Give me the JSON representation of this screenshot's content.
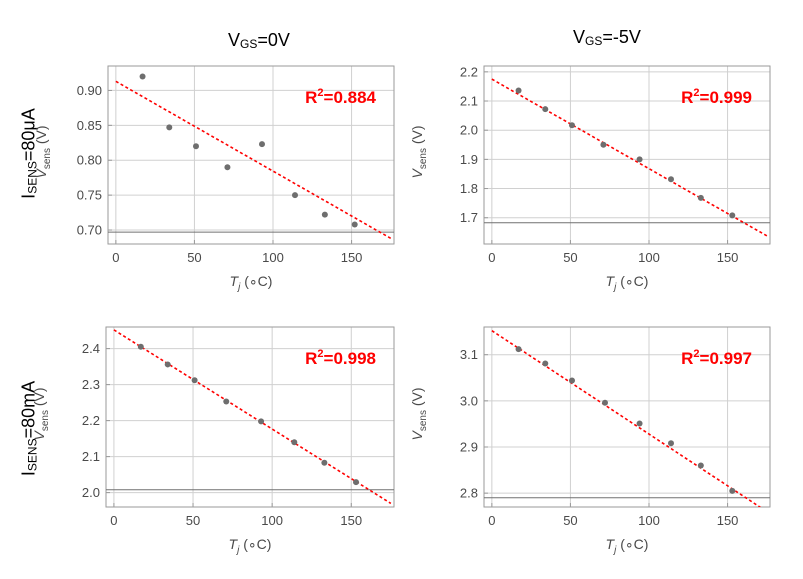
{
  "columns": [
    {
      "main": "V",
      "sub": "GS",
      "rest": "=0V"
    },
    {
      "main": "V",
      "sub": "GS",
      "rest": "=-5V"
    }
  ],
  "rows": [
    {
      "main": "I",
      "sub": "SENS",
      "rest": "=80μA"
    },
    {
      "main": "I",
      "sub": "SENS",
      "rest": "=80mA"
    }
  ],
  "colors": {
    "points": "#6e6e6e",
    "fit": "#ff0000",
    "grid": "#d0d0d0",
    "frame": "#9a9a9a",
    "baseline": "#707070",
    "r2": "#ff0000"
  },
  "chart_data": [
    {
      "type": "scatter",
      "row": "I_SENS=80μA",
      "column": "V_GS=0V",
      "xlabel_main": "T",
      "xlabel_sub": "j",
      "xlabel_unit": " (∘C)",
      "ylabel_main": "V",
      "ylabel_sub": "sens",
      "ylabel_unit": " (V)",
      "xlim": [
        -5,
        177
      ],
      "ylim": [
        0.68,
        0.935
      ],
      "xticks": [
        0,
        50,
        100,
        150
      ],
      "yticks": [
        0.7,
        0.75,
        0.8,
        0.85,
        0.9
      ],
      "ytick_labels": [
        "0.70",
        "0.75",
        "0.80",
        "0.85",
        "0.90"
      ],
      "baseline_y": 0.697,
      "grid": true,
      "points": {
        "x": [
          17,
          34,
          51,
          71,
          93,
          114,
          133,
          152
        ],
        "y": [
          0.92,
          0.847,
          0.82,
          0.79,
          0.823,
          0.75,
          0.722,
          0.708
        ]
      },
      "fit": {
        "x": [
          0,
          175
        ],
        "y": [
          0.913,
          0.688
        ]
      },
      "annotation_prefix": "R",
      "annotation_sup": "2",
      "annotation_value": "=0.884",
      "annotation_position": "top-right"
    },
    {
      "type": "scatter",
      "row": "I_SENS=80μA",
      "column": "V_GS=-5V",
      "xlabel_main": "T",
      "xlabel_sub": "j",
      "xlabel_unit": " (∘C)",
      "ylabel_main": "V",
      "ylabel_sub": "sens",
      "ylabel_unit": " (V)",
      "xlim": [
        -5,
        177
      ],
      "ylim": [
        1.61,
        2.22
      ],
      "xticks": [
        0,
        50,
        100,
        150
      ],
      "yticks": [
        1.7,
        1.8,
        1.9,
        2.0,
        2.1,
        2.2
      ],
      "ytick_labels": [
        "1.7",
        "1.8",
        "1.9",
        "2.0",
        "2.1",
        "2.2"
      ],
      "baseline_y": 1.683,
      "grid": true,
      "points": {
        "x": [
          17,
          34,
          51,
          71,
          94,
          114,
          133,
          153
        ],
        "y": [
          2.136,
          2.072,
          2.017,
          1.95,
          1.9,
          1.832,
          1.768,
          1.708
        ]
      },
      "fit": {
        "x": [
          0,
          175
        ],
        "y": [
          2.175,
          1.638
        ]
      },
      "annotation_prefix": "R",
      "annotation_sup": "2",
      "annotation_value": "=0.999",
      "annotation_position": "top-right"
    },
    {
      "type": "scatter",
      "row": "I_SENS=80mA",
      "column": "V_GS=0V",
      "xlabel_main": "T",
      "xlabel_sub": "j",
      "xlabel_unit": " (∘C)",
      "ylabel_main": "V",
      "ylabel_sub": "sens",
      "ylabel_unit": " (V)",
      "xlim": [
        -5,
        177
      ],
      "ylim": [
        1.96,
        2.46
      ],
      "xticks": [
        0,
        50,
        100,
        150
      ],
      "yticks": [
        2.0,
        2.1,
        2.2,
        2.3,
        2.4
      ],
      "ytick_labels": [
        "2.0",
        "2.1",
        "2.2",
        "2.3",
        "2.4"
      ],
      "baseline_y": 2.008,
      "grid": true,
      "points": {
        "x": [
          17,
          34,
          51,
          71,
          93,
          114,
          133,
          153
        ],
        "y": [
          2.405,
          2.356,
          2.312,
          2.253,
          2.198,
          2.14,
          2.083,
          2.029
        ]
      },
      "fit": {
        "x": [
          0,
          175
        ],
        "y": [
          2.452,
          1.97
        ]
      },
      "annotation_prefix": "R",
      "annotation_sup": "2",
      "annotation_value": "=0.998",
      "annotation_position": "top-right"
    },
    {
      "type": "scatter",
      "row": "I_SENS=80mA",
      "column": "V_GS=-5V",
      "xlabel_main": "T",
      "xlabel_sub": "j",
      "xlabel_unit": " (∘C)",
      "ylabel_main": "V",
      "ylabel_sub": "sens",
      "ylabel_unit": " (V)",
      "xlim": [
        -5,
        177
      ],
      "ylim": [
        2.77,
        3.16
      ],
      "xticks": [
        0,
        50,
        100,
        150
      ],
      "yticks": [
        2.8,
        2.9,
        3.0,
        3.1
      ],
      "ytick_labels": [
        "2.8",
        "2.9",
        "3.0",
        "3.1"
      ],
      "baseline_y": 2.79,
      "grid": true,
      "points": {
        "x": [
          17,
          34,
          51,
          72,
          94,
          114,
          133,
          153
        ],
        "y": [
          3.112,
          3.081,
          3.044,
          2.996,
          2.951,
          2.908,
          2.86,
          2.805
        ]
      },
      "fit": {
        "x": [
          0,
          175
        ],
        "y": [
          3.152,
          2.76
        ]
      },
      "annotation_prefix": "R",
      "annotation_sup": "2",
      "annotation_value": "=0.997",
      "annotation_position": "top-right"
    }
  ]
}
